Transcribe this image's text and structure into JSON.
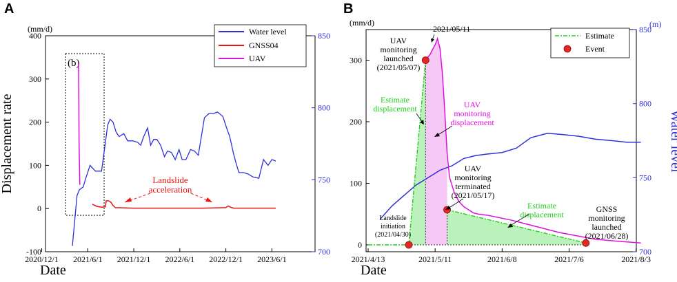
{
  "chart_data": [
    {
      "panel_label": "A",
      "type": "line",
      "xlabel": "Date",
      "ylabel": "Displacement rate",
      "y_unit": "(mm/d)",
      "ylim": [
        -100,
        400
      ],
      "yticks": [
        "-100",
        "0",
        "100",
        "200",
        "300",
        "400"
      ],
      "y2lim": [
        700,
        850
      ],
      "y2ticks": [
        "700",
        "750",
        "800",
        "850"
      ],
      "xticks": [
        "2020/12/1",
        "2021/6/1",
        "2021/12/1",
        "2022/6/1",
        "2022/12/1",
        "2023/6/1"
      ],
      "xlim_months": [
        0,
        35
      ],
      "legend": [
        "Water level",
        "GNSS04",
        "UAV"
      ],
      "box_label": "(b)",
      "annotation": [
        "Landslide",
        "acceleration"
      ],
      "colors": {
        "water": "#2f2fd8",
        "gnss": "#ee1111",
        "uav": "#dd11dd",
        "annotation": "#ee1111"
      },
      "series": [
        {
          "name": "Water level",
          "axis": "right",
          "x": [
            4.0,
            4.6,
            4.9,
            5.4,
            5.8,
            6.3,
            7.0,
            7.8,
            8.3,
            8.6,
            8.9,
            9.3,
            9.7,
            10.1,
            10.7,
            11.2,
            11.9,
            12.5,
            12.9,
            13.3,
            13.8,
            14.2,
            14.6,
            15.0,
            15.5,
            16.0,
            16.4,
            16.9,
            17.4,
            17.9,
            18.3,
            18.8,
            19.4,
            19.9,
            20.4,
            20.9,
            21.2,
            21.8,
            22.4,
            22.9,
            23.6,
            24.1,
            24.5,
            25.0,
            25.3,
            25.7,
            26.3,
            26.9,
            27.5,
            28.3,
            28.9,
            29.5,
            30.0,
            30.5
          ],
          "values": [
            704,
            739,
            743,
            745,
            752,
            760,
            756,
            756,
            776,
            788,
            792,
            790,
            783,
            780,
            782,
            777,
            777,
            776,
            774,
            780,
            786,
            774,
            778,
            778,
            774,
            766,
            770,
            769,
            764,
            771,
            764,
            764,
            771,
            770,
            767,
            783,
            793,
            796,
            796,
            797,
            794,
            786,
            780,
            768,
            762,
            755,
            755,
            754,
            752,
            751,
            764,
            760,
            764,
            763
          ]
        },
        {
          "name": "GNSS04",
          "axis": "left",
          "x": [
            6.6,
            7.2,
            7.8,
            8.3,
            8.4,
            8.7,
            9.0,
            9.3,
            9.6,
            12,
            15,
            18,
            21,
            24,
            24.3,
            24.6,
            25.0,
            27,
            30.5
          ],
          "values": [
            10,
            5,
            3,
            4,
            18,
            18,
            15,
            7,
            2,
            1,
            1,
            1,
            1,
            2,
            6,
            3,
            1,
            1,
            1
          ]
        },
        {
          "name": "UAV",
          "axis": "left",
          "x": [
            4.78,
            4.8,
            4.82,
            4.84,
            4.86,
            4.9,
            4.94,
            4.97
          ],
          "values": [
            330,
            336,
            310,
            230,
            170,
            120,
            80,
            55
          ]
        }
      ]
    },
    {
      "panel_label": "B",
      "type": "line",
      "xlabel": "Date",
      "y_unit_left": "(mm/d)",
      "y_unit_right": "(m)",
      "ylabel_right": "Water level",
      "ylim": [
        0,
        350
      ],
      "yticks": [
        "0",
        "100",
        "200",
        "300"
      ],
      "y2lim": [
        700,
        850
      ],
      "y2ticks": [
        "700",
        "750",
        "800",
        "850"
      ],
      "xticks": [
        "2021/4/13",
        "2021/5/11",
        "2021/6/8",
        "2021/7/6",
        "2021/8/3"
      ],
      "xlim_days": [
        0,
        114
      ],
      "legend": [
        "Estimate",
        "Event"
      ],
      "colors": {
        "estimate": "#22cc22",
        "fill": "#bbf2bb",
        "uav": "#dd11dd",
        "uav_fill": "#f5c8f5",
        "water": "#2f2fd8",
        "event": "#e62626"
      },
      "series": [
        {
          "name": "Water level",
          "axis": "right",
          "x": [
            5,
            10,
            15,
            20,
            25,
            30,
            35,
            40,
            45,
            50,
            56,
            62,
            68,
            75,
            82,
            88,
            95,
            102,
            108,
            114
          ],
          "values": [
            722,
            731,
            738,
            745,
            750,
            755,
            758,
            763,
            765,
            766,
            767,
            770,
            777,
            780,
            779,
            778,
            776,
            775,
            774,
            774
          ]
        },
        {
          "name": "UAV displacement",
          "axis": "left",
          "x": [
            24,
            26,
            27,
            28,
            29,
            30,
            31,
            32,
            33,
            34,
            36,
            38,
            40,
            42,
            44,
            46,
            50,
            60,
            80,
            95,
            104,
            114
          ],
          "values": [
            300,
            310,
            318,
            325,
            335,
            320,
            280,
            220,
            150,
            110,
            85,
            70,
            62,
            57,
            52,
            50,
            48,
            40,
            20,
            9,
            6,
            3
          ]
        },
        {
          "name": "Estimate",
          "axis": "left",
          "x": [
            0,
            17,
            24,
            24,
            33,
            33,
            91
          ],
          "values": [
            0,
            0,
            300,
            0,
            0,
            57,
            3
          ]
        }
      ],
      "events": [
        {
          "x": 17,
          "y": 0,
          "label": [
            "Landslide",
            "initiation",
            "(2021/04/30)"
          ]
        },
        {
          "x": 24,
          "y": 300,
          "label": [
            "UAV",
            "monitoring",
            "launched",
            "(2021/05/07)"
          ]
        },
        {
          "x": 33,
          "y": 57,
          "label": [
            "UAV",
            "monitoring",
            "terminated",
            "(2021/05/17)"
          ]
        },
        {
          "x": 91,
          "y": 3,
          "label": [
            "GNSS",
            "monitoring",
            "launched",
            "(2021/06/28)"
          ]
        }
      ],
      "annotations": {
        "peak_date": "2021/05/11",
        "estimate_left": [
          "Estimate",
          "displacement"
        ],
        "uav_text": [
          "UAV",
          "monitoring",
          "displacement"
        ],
        "estimate_right": [
          "Estimate",
          "displacement"
        ]
      }
    }
  ]
}
